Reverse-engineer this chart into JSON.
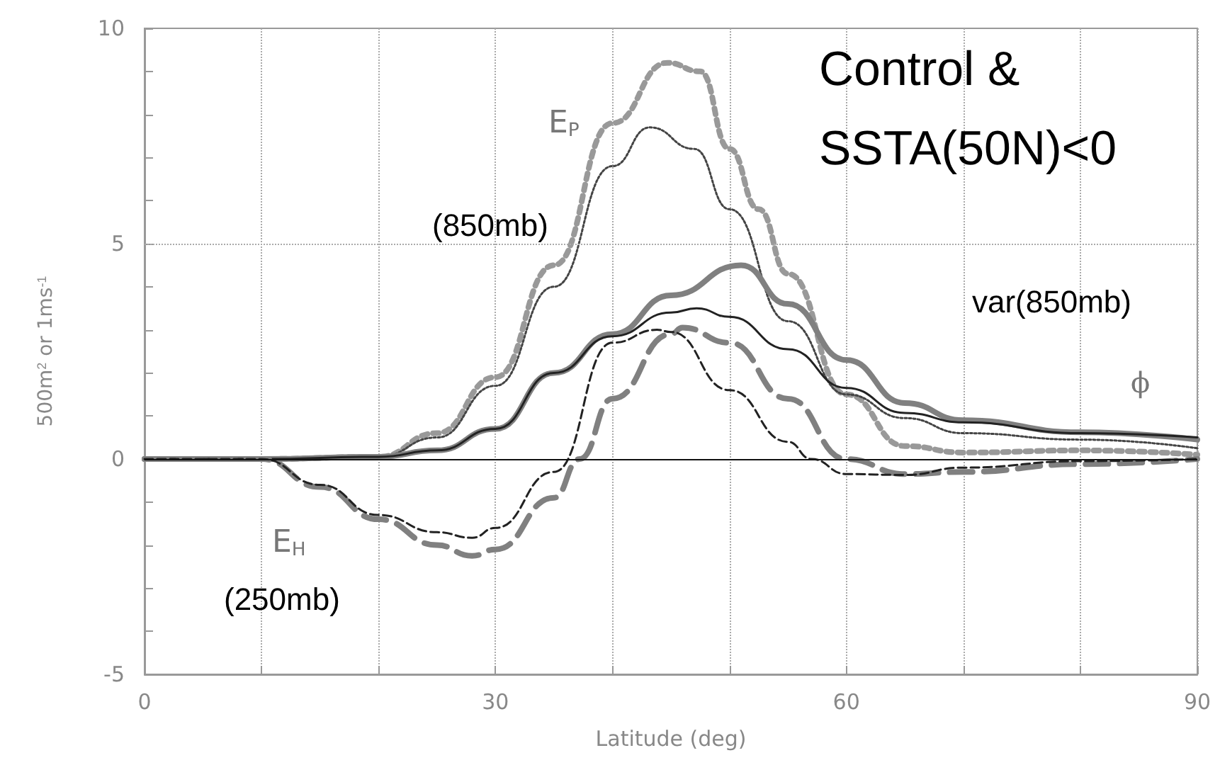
{
  "chart_data": {
    "type": "line",
    "xlabel": "Latitude (deg)",
    "ylabel": "500m$^{2}$ or 1ms$^{-1}$",
    "xlim": [
      0,
      90
    ],
    "xticks": [
      0,
      {
        "value": 10,
        "label": null
      },
      {
        "value": 20,
        "label": null
      },
      30,
      {
        "value": 40,
        "label": null
      },
      {
        "value": 50,
        "label": null
      },
      60,
      {
        "value": 70,
        "label": null
      },
      {
        "value": 80,
        "label": null
      },
      90
    ],
    "ylim": [
      -5,
      10
    ],
    "yticks": [
      -5,
      {
        "value": -4,
        "label": null
      },
      {
        "value": -3,
        "label": null
      },
      {
        "value": -2,
        "label": null
      },
      {
        "value": -1,
        "label": null
      },
      0,
      {
        "value": 1,
        "label": null
      },
      {
        "value": 2,
        "label": null
      },
      {
        "value": 3,
        "label": null
      },
      {
        "value": 4,
        "label": null
      },
      5,
      {
        "value": 6,
        "label": null
      },
      {
        "value": 7,
        "label": null
      },
      {
        "value": 8,
        "label": null
      },
      {
        "value": 9,
        "label": null
      },
      10
    ],
    "grid": "x",
    "marker": "none",
    "ref_lines": [
      {
        "axis": "y",
        "value": 5,
        "label": null,
        "color": "#aaaaaa",
        "line_style": "dotted"
      },
      {
        "axis": "y",
        "value": 0,
        "label": null,
        "color": "#111111",
        "line_style": "solid"
      }
    ],
    "annotations": [
      "E$_{P}$",
      "(850mb)",
      "E$_{H}$",
      "(250mb)",
      "Control &",
      "SSTA(50N)<0",
      "var(850mb)",
      "ϕ"
    ],
    "series": [
      {
        "color": "#999999",
        "line_style": "dotted",
        "x": [
          0,
          10,
          20,
          25,
          30,
          35,
          40,
          44.7,
          47.5,
          50,
          52.5,
          55,
          60,
          65,
          70,
          80,
          90
        ],
        "values": [
          0,
          0,
          0.05,
          0.6,
          1.9,
          4.5,
          7.8,
          9.2,
          9.0,
          7.2,
          5.8,
          4.3,
          1.5,
          0.3,
          0.15,
          0.2,
          0.1
        ]
      },
      {
        "color": "#444444",
        "line_style": "dotted",
        "x": [
          0,
          10,
          20,
          25,
          30,
          35,
          40,
          43.2,
          47,
          50,
          55,
          60,
          65,
          70,
          80,
          90
        ],
        "values": [
          0,
          0,
          0.05,
          0.5,
          1.7,
          4.0,
          6.8,
          7.7,
          7.2,
          5.8,
          3.2,
          1.5,
          0.95,
          0.6,
          0.45,
          0.25
        ]
      },
      {
        "color": "#808080",
        "line_style": "solid",
        "x": [
          0,
          10,
          20,
          25,
          30,
          35,
          40,
          45,
          51,
          55,
          60,
          65,
          70,
          80,
          90
        ],
        "values": [
          0,
          0,
          0.05,
          0.2,
          0.7,
          2.0,
          2.9,
          3.8,
          4.5,
          3.6,
          2.3,
          1.3,
          0.9,
          0.62,
          0.45
        ]
      },
      {
        "color": "#222222",
        "line_style": "solid",
        "x": [
          0,
          10,
          20,
          25,
          30,
          35,
          40,
          45,
          47.2,
          50,
          55,
          60,
          65,
          70,
          80,
          90
        ],
        "values": [
          0,
          0,
          0.05,
          0.2,
          0.7,
          2.0,
          2.85,
          3.4,
          3.5,
          3.3,
          2.55,
          1.65,
          1.07,
          0.85,
          0.6,
          0.5
        ]
      },
      {
        "color": "#808080",
        "line_style": "dashed",
        "x": [
          0,
          10,
          15,
          20,
          25,
          28,
          30,
          35,
          37.2,
          40,
          45,
          46,
          50,
          55,
          60,
          65,
          70,
          80,
          90
        ],
        "values": [
          0,
          0,
          -0.65,
          -1.4,
          -2.0,
          -2.25,
          -2.1,
          -0.9,
          0,
          1.4,
          2.9,
          3.05,
          2.7,
          1.4,
          0,
          -0.35,
          -0.3,
          -0.12,
          0
        ]
      },
      {
        "color": "#222222",
        "line_style": "dashed",
        "x": [
          0,
          10,
          15,
          20,
          25,
          28,
          30,
          35,
          40,
          43.8,
          45,
          50,
          55,
          57,
          60,
          65,
          70,
          80,
          90
        ],
        "values": [
          0,
          0,
          -0.6,
          -1.3,
          -1.7,
          -1.83,
          -1.6,
          -0.3,
          2.7,
          3.0,
          2.95,
          1.6,
          0.4,
          0,
          -0.35,
          -0.37,
          -0.2,
          -0.05,
          0
        ]
      }
    ]
  }
}
